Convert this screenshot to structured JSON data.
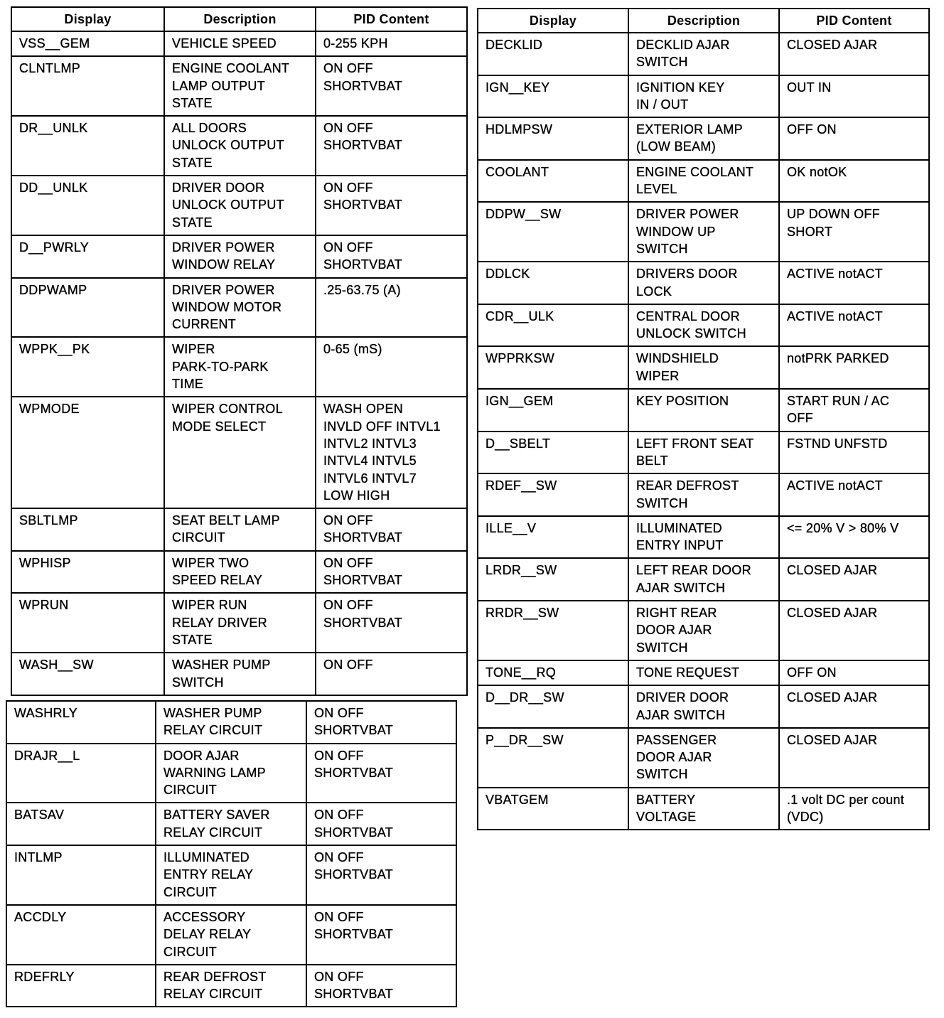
{
  "headers": [
    "Display",
    "Description",
    "PID Content"
  ],
  "left_table": [
    [
      "VSS__GEM",
      "VEHICLE SPEED",
      "0-255 KPH"
    ],
    [
      "CLNTLMP",
      "ENGINE COOLANT\nLAMP OUTPUT\nSTATE",
      "ON OFF\nSHORTVBAT"
    ],
    [
      "DR__UNLK",
      "ALL DOORS\nUNLOCK OUTPUT\nSTATE",
      "ON OFF\nSHORTVBAT"
    ],
    [
      "DD__UNLK",
      "DRIVER DOOR\nUNLOCK OUTPUT\nSTATE",
      "ON OFF\nSHORTVBAT"
    ],
    [
      "D__PWRLY",
      "DRIVER POWER\nWINDOW RELAY",
      "ON OFF\nSHORTVBAT"
    ],
    [
      "DDPWAMP",
      "DRIVER POWER\nWINDOW MOTOR\nCURRENT",
      ".25-63.75 (A)"
    ],
    [
      "WPPK__PK",
      "WIPER\nPARK-TO-PARK\nTIME",
      "0-65 (mS)"
    ],
    [
      "WPMODE",
      "WIPER CONTROL\nMODE SELECT",
      "WASH OPEN\nINVLD OFF INTVL1\nINTVL2 INTVL3\nINTVL4 INTVL5\nINTVL6 INTVL7\nLOW HIGH"
    ],
    [
      "SBLTLMP",
      "SEAT BELT LAMP\nCIRCUIT",
      "ON OFF\nSHORTVBAT"
    ],
    [
      "WPHISP",
      "WIPER TWO\nSPEED RELAY",
      "ON OFF\nSHORTVBAT"
    ],
    [
      "WPRUN",
      "WIPER RUN\nRELAY DRIVER\nSTATE",
      "ON OFF\nSHORTVBAT"
    ],
    [
      "WASH__SW",
      "WASHER PUMP\nSWITCH",
      "ON OFF"
    ]
  ],
  "left_table_continued": [
    [
      "WASHRLY",
      "WASHER PUMP\nRELAY CIRCUIT",
      "ON OFF\nSHORTVBAT"
    ],
    [
      "DRAJR__L",
      "DOOR AJAR\nWARNING LAMP\nCIRCUIT",
      "ON OFF\nSHORTVBAT"
    ],
    [
      "BATSAV",
      "BATTERY SAVER\nRELAY CIRCUIT",
      "ON OFF\nSHORTVBAT"
    ],
    [
      "INTLMP",
      "ILLUMINATED\nENTRY RELAY\nCIRCUIT",
      "ON OFF\nSHORTVBAT"
    ],
    [
      "ACCDLY",
      "ACCESSORY\nDELAY RELAY\nCIRCUIT",
      "ON OFF\nSHORTVBAT"
    ],
    [
      "RDEFRLY",
      "REAR DEFROST\nRELAY CIRCUIT",
      "ON OFF\nSHORTVBAT"
    ]
  ],
  "right_table": [
    [
      "DECKLID",
      "DECKLID AJAR\nSWITCH",
      "CLOSED AJAR"
    ],
    [
      "IGN__KEY",
      "IGNITION KEY\nIN / OUT",
      "OUT IN"
    ],
    [
      "HDLMPSW",
      "EXTERIOR LAMP\n(LOW BEAM)",
      "OFF ON"
    ],
    [
      "COOLANT",
      "ENGINE COOLANT\nLEVEL",
      "OK notOK"
    ],
    [
      "DDPW__SW",
      "DRIVER POWER\nWINDOW UP\nSWITCH",
      "UP DOWN OFF\nSHORT"
    ],
    [
      "DDLCK",
      "DRIVERS DOOR\nLOCK",
      "ACTIVE notACT"
    ],
    [
      "CDR__ULK",
      "CENTRAL DOOR\nUNLOCK SWITCH",
      "ACTIVE notACT"
    ],
    [
      "WPPRKSW",
      "WINDSHIELD\nWIPER",
      "notPRK PARKED"
    ],
    [
      "IGN__GEM",
      "KEY POSITION",
      "START RUN / AC\nOFF"
    ],
    [
      "D__SBELT",
      "LEFT FRONT SEAT\nBELT",
      "FSTND UNFSTD"
    ],
    [
      "RDEF__SW",
      "REAR DEFROST\nSWITCH",
      "ACTIVE notACT"
    ],
    [
      "ILLE__V",
      "ILLUMINATED\nENTRY INPUT",
      "<= 20% V > 80% V"
    ],
    [
      "LRDR__SW",
      "LEFT REAR DOOR\nAJAR SWITCH",
      "CLOSED AJAR"
    ],
    [
      "RRDR__SW",
      "RIGHT REAR\nDOOR AJAR\nSWITCH",
      "CLOSED AJAR"
    ],
    [
      "TONE__RQ",
      "TONE REQUEST",
      "OFF ON"
    ],
    [
      "D__DR__SW",
      "DRIVER DOOR\nAJAR SWITCH",
      "CLOSED AJAR"
    ],
    [
      "P__DR__SW",
      "PASSENGER\nDOOR AJAR\nSWITCH",
      "CLOSED AJAR"
    ],
    [
      "VBATGEM",
      "BATTERY\nVOLTAGE",
      ".1 volt DC per count\n(VDC)"
    ]
  ]
}
